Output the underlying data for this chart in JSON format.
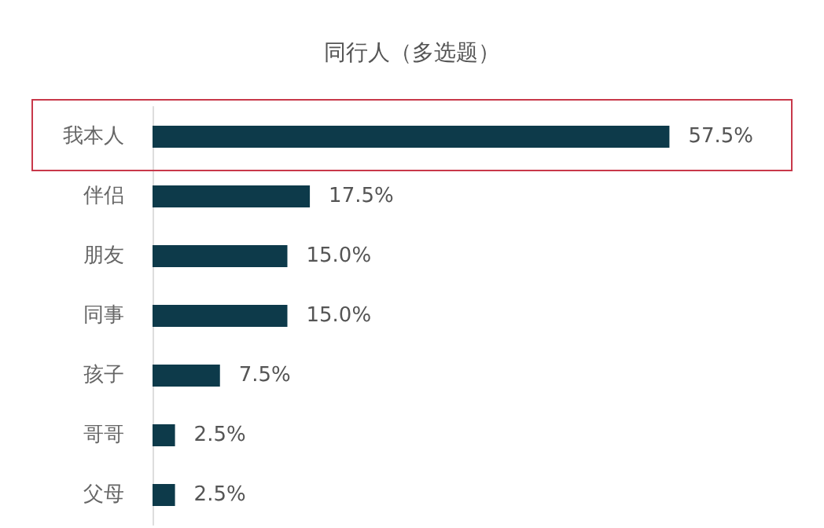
{
  "chart_data": {
    "type": "bar",
    "orientation": "horizontal",
    "title": "同行人（多选题）",
    "categories": [
      "我本人",
      "伴侣",
      "朋友",
      "同事",
      "孩子",
      "哥哥",
      "父母"
    ],
    "values": [
      57.5,
      17.5,
      15.0,
      15.0,
      7.5,
      2.5,
      2.5
    ],
    "value_labels": [
      "57.5%",
      "17.5%",
      "15.0%",
      "15.0%",
      "7.5%",
      "2.5%",
      "2.5%"
    ],
    "color": "#0d3a4a",
    "tick_labels": "y"
  }
}
